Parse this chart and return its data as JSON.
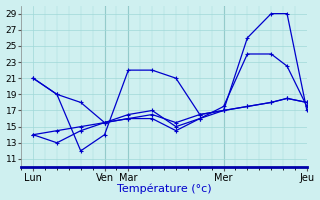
{
  "title": "Température (°c)",
  "bg_color": "#cff0f0",
  "grid_color": "#a0d8d8",
  "line_color": "#0000cc",
  "xlim": [
    0,
    72
  ],
  "ylim": [
    10,
    30
  ],
  "yticks": [
    11,
    13,
    15,
    17,
    19,
    21,
    23,
    25,
    27,
    29
  ],
  "day_labels": [
    "Lun",
    "Ven",
    "Mar",
    "Mer",
    "Jeu"
  ],
  "day_positions": [
    3,
    21,
    27,
    51,
    72
  ],
  "series": [
    [
      [
        3,
        21
      ],
      [
        9,
        19
      ],
      [
        15,
        12
      ],
      [
        21,
        14
      ],
      [
        27,
        22
      ],
      [
        33,
        22
      ],
      [
        39,
        21
      ],
      [
        45,
        16.5
      ],
      [
        51,
        17
      ],
      [
        57,
        26
      ],
      [
        63,
        29
      ],
      [
        67,
        29
      ],
      [
        72,
        17
      ]
    ],
    [
      [
        3,
        21
      ],
      [
        9,
        19
      ],
      [
        15,
        18
      ],
      [
        21,
        15.5
      ],
      [
        27,
        16
      ],
      [
        33,
        16
      ],
      [
        39,
        14.5
      ],
      [
        45,
        16
      ],
      [
        51,
        17.5
      ],
      [
        57,
        24
      ],
      [
        63,
        24
      ],
      [
        67,
        22.5
      ],
      [
        72,
        17.5
      ]
    ],
    [
      [
        3,
        14
      ],
      [
        9,
        14.5
      ],
      [
        15,
        15
      ],
      [
        21,
        15.5
      ],
      [
        27,
        16
      ],
      [
        33,
        16.5
      ],
      [
        39,
        15.5
      ],
      [
        45,
        16.5
      ],
      [
        51,
        17
      ],
      [
        57,
        17.5
      ],
      [
        63,
        18
      ],
      [
        67,
        18.5
      ],
      [
        72,
        18
      ]
    ],
    [
      [
        3,
        14
      ],
      [
        9,
        13
      ],
      [
        15,
        14.5
      ],
      [
        21,
        15.5
      ],
      [
        27,
        16.5
      ],
      [
        33,
        17
      ],
      [
        39,
        15
      ],
      [
        45,
        16
      ],
      [
        51,
        17
      ],
      [
        57,
        17.5
      ],
      [
        63,
        18
      ],
      [
        67,
        18.5
      ],
      [
        72,
        18
      ]
    ]
  ],
  "vlines": [
    21,
    27,
    51
  ],
  "xlabel_color": "#0000cc",
  "spine_bottom_color": "#0000aa",
  "tick_color": "#555555"
}
